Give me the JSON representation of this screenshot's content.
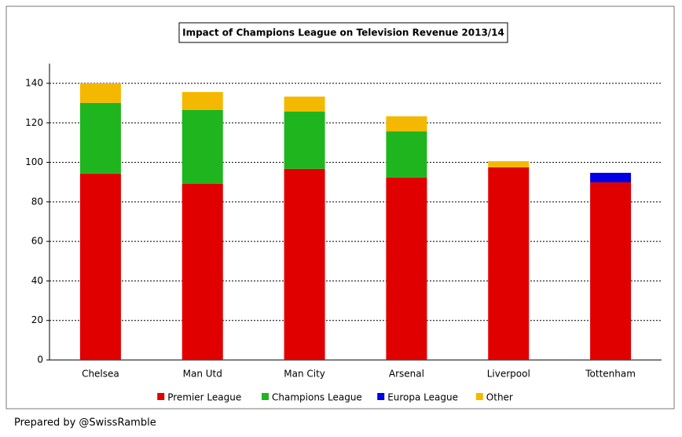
{
  "chart_data": {
    "type": "stacked-bar",
    "title": "Impact of Champions League on Television Revenue 2013/14",
    "categories": [
      "Chelsea",
      "Man Utd",
      "Man City",
      "Arsenal",
      "Liverpool",
      "Tottenham"
    ],
    "series": [
      {
        "name": "Premier League",
        "color": "#e00000",
        "values": [
          94.3,
          89.1,
          96.7,
          92.3,
          97.5,
          89.9
        ]
      },
      {
        "name": "Champions League",
        "color": "#1fb51f",
        "values": [
          35.8,
          37.4,
          29.0,
          23.4,
          0,
          0
        ]
      },
      {
        "name": "Europa League",
        "color": "#0000e6",
        "values": [
          0,
          0,
          0,
          0,
          0,
          4.8
        ]
      },
      {
        "name": "Other",
        "color": "#f5b800",
        "values": [
          9.9,
          9.1,
          7.6,
          7.6,
          3.1,
          0
        ]
      }
    ],
    "ylim": [
      0,
      150
    ],
    "yticks": [
      0,
      20,
      40,
      60,
      80,
      100,
      120,
      140
    ],
    "grid": true
  },
  "footer": "Prepared by @SwissRamble"
}
